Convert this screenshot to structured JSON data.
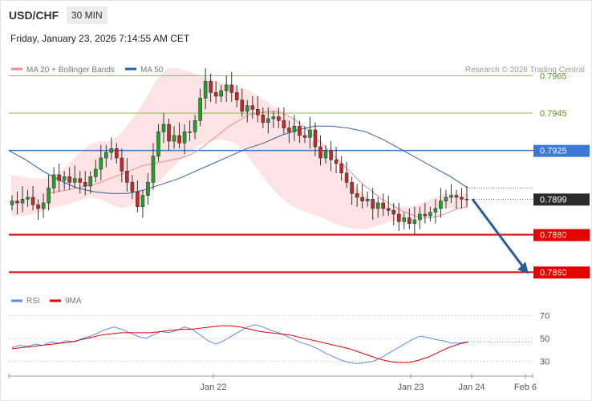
{
  "header": {
    "symbol": "USD/CHF",
    "timeframe": "30 MIN",
    "datetime": "Friday, January 23, 2026 7:14:55 AM CET"
  },
  "colors": {
    "bull": "#22a12a",
    "bear": "#c62828",
    "ma20": "#f28b8b",
    "ma50": "#2d5fa3",
    "band": "#fde3e3",
    "resistance": "#8dbf45",
    "support": "#e60000",
    "pivot": "#3b78d8",
    "arrow": "#2a5b9b",
    "rsi": "#5b8def",
    "rsi_ma": "#e60000"
  },
  "chart_data": [
    {
      "type": "candlestick",
      "legend": [
        {
          "name": "MA 20 + Bollinger Bands",
          "color": "#f28b8b"
        },
        {
          "name": "MA 50",
          "color": "#2d5fa3"
        }
      ],
      "legend_placement": "top-left",
      "watermark": "Research © 2026 Trading Central",
      "x_ticks": [
        "Jan 22",
        "Jan 23",
        "Jan 24",
        "Feb 6"
      ],
      "ylim": [
        0.7849,
        0.7984
      ],
      "levels": [
        {
          "label": "0.7965",
          "value": 0.7965,
          "kind": "resistance"
        },
        {
          "label": "0.7945",
          "value": 0.7945,
          "kind": "resistance"
        },
        {
          "label": "0.7925",
          "value": 0.7925,
          "kind": "pivot"
        },
        {
          "label": "0.7899",
          "value": 0.7899,
          "kind": "current"
        },
        {
          "label": "0.7880",
          "value": 0.788,
          "kind": "support"
        },
        {
          "label": "0.7860",
          "value": 0.786,
          "kind": "support"
        }
      ],
      "forecast_arrow": {
        "from": 0.7899,
        "to": 0.786
      },
      "close": [
        0.7898,
        0.7897,
        0.7899,
        0.79,
        0.7896,
        0.7894,
        0.7897,
        0.7905,
        0.7912,
        0.7909,
        0.7911,
        0.7908,
        0.791,
        0.7908,
        0.7906,
        0.7911,
        0.7915,
        0.7921,
        0.7924,
        0.7926,
        0.7921,
        0.7914,
        0.7908,
        0.7903,
        0.7895,
        0.7901,
        0.7908,
        0.7922,
        0.7935,
        0.7939,
        0.793,
        0.7933,
        0.7929,
        0.7935,
        0.7935,
        0.7941,
        0.7953,
        0.7962,
        0.7956,
        0.7954,
        0.7957,
        0.796,
        0.7956,
        0.7952,
        0.7946,
        0.7949,
        0.7947,
        0.7944,
        0.794,
        0.7942,
        0.7943,
        0.7941,
        0.7937,
        0.7935,
        0.7938,
        0.7933,
        0.7932,
        0.7936,
        0.7927,
        0.7921,
        0.7925,
        0.792,
        0.7918,
        0.7913,
        0.7908,
        0.7902,
        0.79,
        0.7898,
        0.7899,
        0.7894,
        0.7897,
        0.7894,
        0.7893,
        0.7891,
        0.7887,
        0.7889,
        0.7886,
        0.7888,
        0.7891,
        0.789,
        0.7892,
        0.7894,
        0.7898,
        0.79,
        0.7901,
        0.79,
        0.7899,
        0.7899
      ],
      "ma20": [
        0.7902,
        0.7903,
        0.7904,
        0.7905,
        0.7906,
        0.7907,
        0.7909,
        0.7911,
        0.7913,
        0.7915,
        0.7917,
        0.7918,
        0.7919,
        0.792,
        0.7921,
        0.7923,
        0.7926,
        0.793,
        0.7934,
        0.7938,
        0.7941,
        0.7944,
        0.7945,
        0.7946,
        0.7946,
        0.7944,
        0.7941,
        0.7937,
        0.7932,
        0.7927,
        0.7922,
        0.7917,
        0.7912,
        0.7907,
        0.7903,
        0.7899,
        0.7896,
        0.7893,
        0.7891,
        0.7889,
        0.7889,
        0.789,
        0.7892,
        0.7894,
        0.7895
      ],
      "bb_upper": [
        0.7912,
        0.7911,
        0.791,
        0.791,
        0.7912,
        0.7917,
        0.7923,
        0.7928,
        0.793,
        0.793,
        0.7935,
        0.7943,
        0.7952,
        0.7962,
        0.7969,
        0.7969,
        0.7967,
        0.7965,
        0.7963,
        0.7961,
        0.796,
        0.7958,
        0.7955,
        0.7951,
        0.7947,
        0.7942,
        0.7937,
        0.7931,
        0.7924,
        0.7916,
        0.791,
        0.7905,
        0.79,
        0.7897,
        0.7895,
        0.7895,
        0.7895,
        0.7897,
        0.79,
        0.7902,
        0.7902,
        0.7902
      ],
      "bb_lower": [
        0.789,
        0.789,
        0.7891,
        0.7893,
        0.7895,
        0.7896,
        0.7898,
        0.79,
        0.7899,
        0.7896,
        0.7894,
        0.7896,
        0.7901,
        0.7907,
        0.7913,
        0.7919,
        0.7924,
        0.7928,
        0.793,
        0.7931,
        0.7929,
        0.7924,
        0.7916,
        0.7908,
        0.7901,
        0.7896,
        0.7893,
        0.7891,
        0.7889,
        0.7886,
        0.7884,
        0.7883,
        0.7883,
        0.7885,
        0.7887,
        0.7888,
        0.7889,
        0.7891,
        0.7893,
        0.7894,
        0.7894,
        0.7894
      ],
      "ma50": [
        0.7925,
        0.792,
        0.7914,
        0.7909,
        0.7905,
        0.7903,
        0.7902,
        0.7902,
        0.7904,
        0.7907,
        0.791,
        0.7914,
        0.7918,
        0.7922,
        0.7926,
        0.7929,
        0.7933,
        0.7936,
        0.7938,
        0.7938,
        0.7937,
        0.7935,
        0.7931,
        0.7926,
        0.7921,
        0.7916,
        0.7911,
        0.7905
      ]
    },
    {
      "type": "line",
      "legend": [
        {
          "name": "RSI",
          "color": "#5b8def"
        },
        {
          "name": "9MA",
          "color": "#e60000"
        }
      ],
      "y_ticks": [
        "70",
        "50",
        "30"
      ],
      "ylim": [
        22,
        78
      ],
      "series": [
        {
          "name": "RSI",
          "values": [
            42,
            44,
            43,
            45,
            44,
            47,
            46,
            48,
            47,
            50,
            52,
            55,
            58,
            60,
            58,
            55,
            52,
            50,
            53,
            56,
            55,
            57,
            60,
            58,
            53,
            48,
            45,
            48,
            52,
            56,
            60,
            62,
            60,
            57,
            55,
            52,
            49,
            46,
            44,
            41,
            37,
            34,
            31,
            29,
            28,
            29,
            30,
            33,
            37,
            41,
            45,
            49,
            52,
            51,
            49,
            48,
            46,
            46,
            47
          ]
        },
        {
          "name": "9MA",
          "values": [
            41,
            42,
            43,
            44,
            45,
            46,
            47,
            49,
            51,
            53,
            54,
            55,
            55,
            55,
            55,
            56,
            57,
            58,
            58,
            59,
            60,
            61,
            61,
            60,
            58,
            56,
            55,
            54,
            53,
            51,
            49,
            47,
            45,
            43,
            41,
            38,
            35,
            32,
            30,
            29,
            29,
            31,
            34,
            38,
            42,
            45,
            47
          ]
        }
      ]
    }
  ]
}
